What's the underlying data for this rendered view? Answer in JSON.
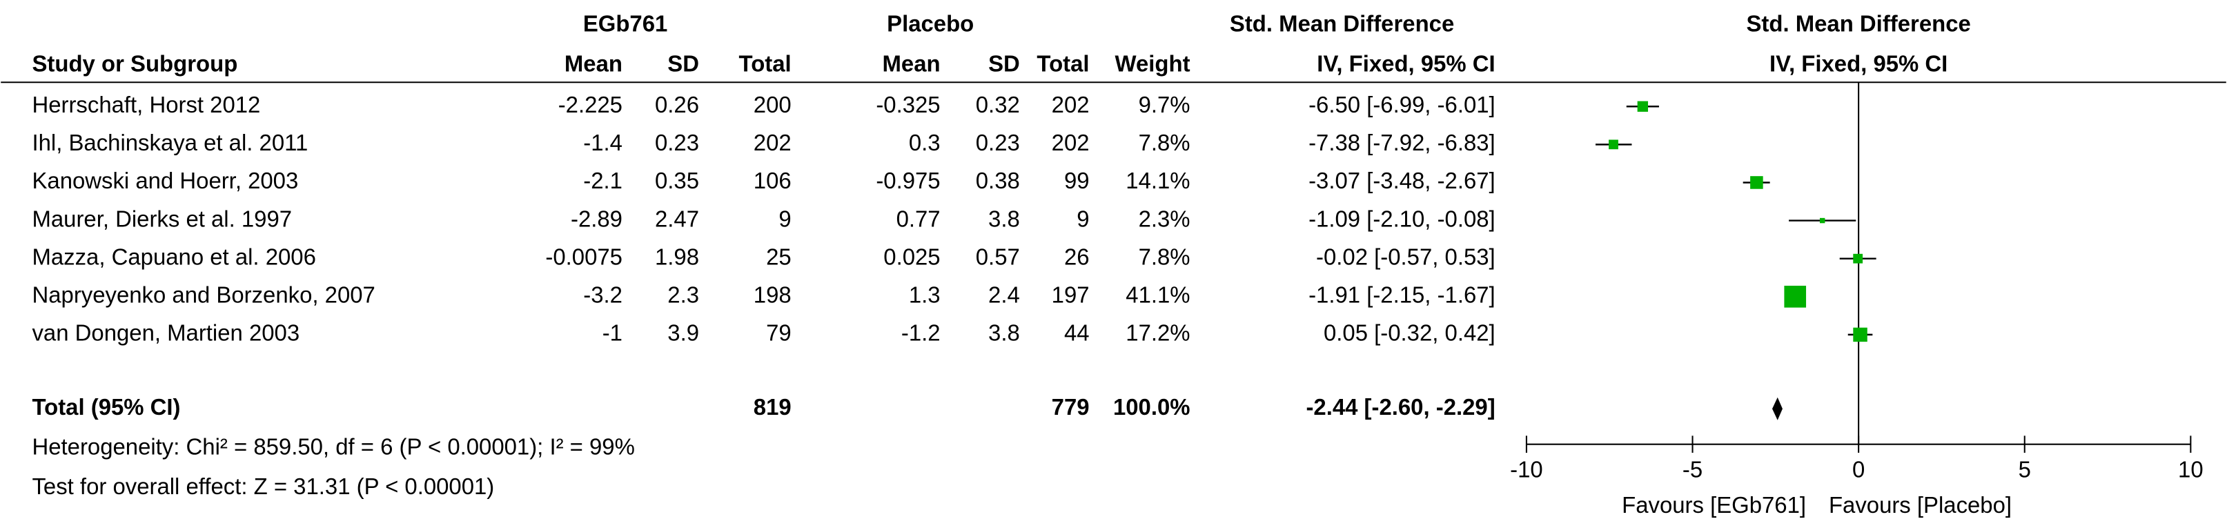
{
  "chart_data": {
    "type": "forest",
    "title": "Std. Mean Difference",
    "subtitle": "IV, Fixed, 95% CI",
    "group_headers": [
      "EGb761",
      "Placebo",
      "Std. Mean Difference"
    ],
    "columns": [
      "Study or Subgroup",
      "Mean",
      "SD",
      "Total",
      "Mean",
      "SD",
      "Total",
      "Weight",
      "IV, Fixed, 95% CI"
    ],
    "color": "#00b000",
    "studies": [
      {
        "name": "Herrschaft, Horst  2012",
        "mean1": -2.225,
        "sd1": 0.26,
        "n1": 200,
        "mean2": -0.325,
        "sd2": 0.32,
        "n2": 202,
        "weight": 9.7,
        "weight_label": "9.7%",
        "smd": -6.5,
        "lo": -6.99,
        "hi": -6.01,
        "ci_label": "-6.50 [-6.99, -6.01]"
      },
      {
        "name": "Ihl, Bachinskaya et al. 2011",
        "mean1": -1.4,
        "sd1": 0.23,
        "n1": 202,
        "mean2": 0.3,
        "sd2": 0.23,
        "n2": 202,
        "weight": 7.8,
        "weight_label": "7.8%",
        "smd": -7.38,
        "lo": -7.92,
        "hi": -6.83,
        "ci_label": "-7.38 [-7.92, -6.83]"
      },
      {
        "name": "Kanowski and Hoerr, 2003",
        "mean1": -2.1,
        "sd1": 0.35,
        "n1": 106,
        "mean2": -0.975,
        "sd2": 0.38,
        "n2": 99,
        "weight": 14.1,
        "weight_label": "14.1%",
        "smd": -3.07,
        "lo": -3.48,
        "hi": -2.67,
        "ci_label": "-3.07 [-3.48, -2.67]"
      },
      {
        "name": "Maurer, Dierks et al. 1997",
        "mean1": -2.89,
        "sd1": 2.47,
        "n1": 9,
        "mean2": 0.77,
        "sd2": 3.8,
        "n2": 9,
        "weight": 2.3,
        "weight_label": "2.3%",
        "smd": -1.09,
        "lo": -2.1,
        "hi": -0.08,
        "ci_label": "-1.09 [-2.10, -0.08]"
      },
      {
        "name": "Mazza, Capuano et al. 2006",
        "mean1": -0.0075,
        "sd1": 1.98,
        "n1": 25,
        "mean2": 0.025,
        "sd2": 0.57,
        "n2": 26,
        "weight": 7.8,
        "weight_label": "7.8%",
        "smd": -0.02,
        "lo": -0.57,
        "hi": 0.53,
        "ci_label": "-0.02 [-0.57, 0.53]"
      },
      {
        "name": "Napryeyenko and Borzenko, 2007",
        "mean1": -3.2,
        "sd1": 2.3,
        "n1": 198,
        "mean2": 1.3,
        "sd2": 2.4,
        "n2": 197,
        "weight": 41.1,
        "weight_label": "41.1%",
        "smd": -1.91,
        "lo": -2.15,
        "hi": -1.67,
        "ci_label": "-1.91 [-2.15, -1.67]"
      },
      {
        "name": "van Dongen, Martien 2003",
        "mean1": -1,
        "sd1": 3.9,
        "n1": 79,
        "mean2": -1.2,
        "sd2": 3.8,
        "n2": 44,
        "weight": 17.2,
        "weight_label": "17.2%",
        "smd": 0.05,
        "lo": -0.32,
        "hi": 0.42,
        "ci_label": "0.05 [-0.32, 0.42]"
      }
    ],
    "total": {
      "name": "Total (95% CI)",
      "n1": 819,
      "n2": 779,
      "weight": 100,
      "weight_label": "100.0%",
      "smd": -2.44,
      "lo": -2.6,
      "hi": -2.29,
      "ci_label": "-2.44 [-2.60, -2.29]"
    },
    "heterogeneity": "Heterogeneity: Chi² = 859.50, df = 6 (P < 0.00001); I² = 99%",
    "overall_effect": "Test for overall effect: Z = 31.31 (P < 0.00001)",
    "xlim": [
      -10,
      10
    ],
    "xticks": [
      -10,
      -5,
      0,
      5,
      10
    ],
    "favours_left": "Favours [EGb761]",
    "favours_right": "Favours [Placebo]"
  }
}
